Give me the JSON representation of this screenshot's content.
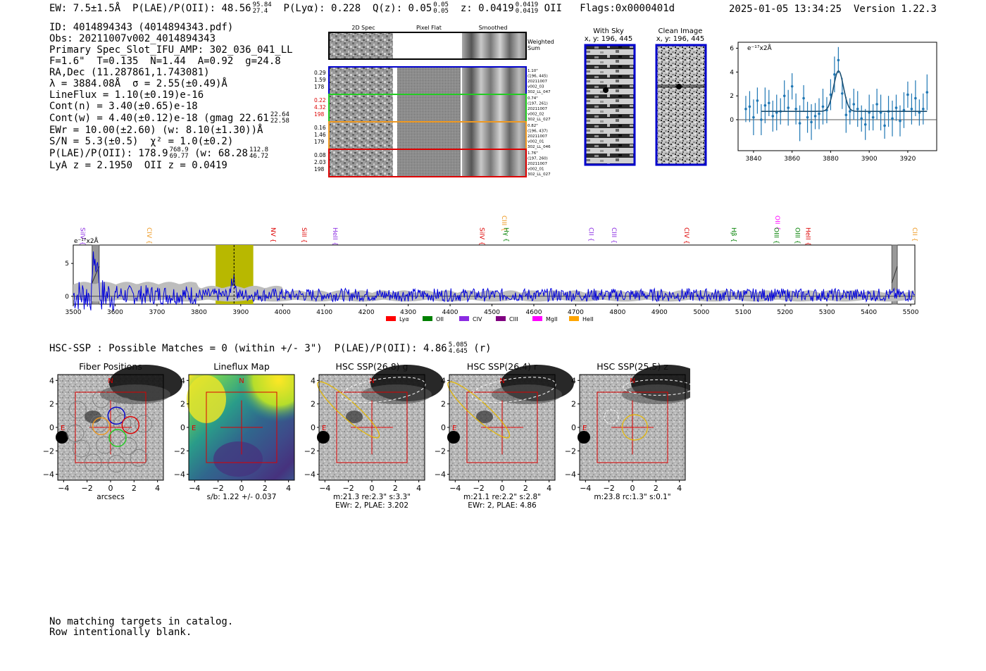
{
  "header": {
    "ew": "EW: 7.5±1.5Å",
    "plae_label": "P(LAE)/P(OII): 48.56",
    "plae_hi": "95.84",
    "plae_lo": "27.4",
    "plya": "P(Lyα): 0.228",
    "q_label": "Q(z): 0.05",
    "q_hi": "0.05",
    "q_lo": "0.05",
    "z_label": "z: 0.0419",
    "z_hi": "0.0419",
    "z_lo": "0.0419",
    "z_line": "OII",
    "flags": "Flags:0x0000401d",
    "datetime": "2025-01-05 13:34:25",
    "version": "Version 1.22.3"
  },
  "info": {
    "id": "ID: 4014894343 (4014894343.pdf)",
    "obs": "Obs: 20211007v002_4014894343",
    "primary": "Primary Spec_Slot_IFU_AMP: 302_036_041_LL",
    "params": "F=1.6\"  T=0.135  N=1.44  A=0.92  g=24.8",
    "radec": "RA,Dec (11.287861,1.743081)",
    "lambda": "λ = 3884.08Å  σ = 2.55(±0.49)Å",
    "lineflux": "LineFlux = 1.10(±0.19)e-16",
    "contn": "Cont(n) = 3.40(±0.65)e-18",
    "contw": "Cont(w) = 4.40(±0.12)e-18 (gmag 22.61",
    "contw_hi": "22.64",
    "contw_lo": "22.58",
    "ewr": "EWr = 10.00(±2.60) (w: 8.10(±1.30))Å",
    "sn": "S/N = 5.3(±0.5)  χ² = 1.0(±0.2)",
    "plae": "P(LAE)/P(OII): 178.9",
    "plae_hi": "768.9",
    "plae_lo": "69.77",
    "plae_w": "(w: 68.28",
    "plae_w_hi": "112.8",
    "plae_w_lo": "46.72",
    "lyaz": "LyA z = 2.1950  OII z = 0.0419"
  },
  "cutouts": {
    "col_2d": "2D Spec",
    "col_flat": "Pixel Flat",
    "col_smooth": "Smoothed",
    "weighted": "Weighted",
    "sum": "Sum",
    "rows": [
      {
        "color": "#0000cc",
        "left": [
          "0.29",
          "1.59",
          "178"
        ],
        "left_color": "#000000",
        "right": [
          "1.10\"",
          "(196, 445)",
          "20211007",
          "v002_03",
          "302_LL_047"
        ]
      },
      {
        "color": "#22cc22",
        "left": [
          "0.22",
          "4.32",
          "198"
        ],
        "left_color": "#dd0000",
        "right": [
          "0.74\"",
          "(197, 261)",
          "20211007",
          "v002_02",
          "302_LL_027"
        ]
      },
      {
        "color": "#ee9922",
        "left": [
          "0.16",
          "1.46",
          "179"
        ],
        "left_color": "#000000",
        "right": [
          "0.82\"",
          "(196, 437)",
          "20211007",
          "v002_01",
          "302_LL_046"
        ]
      },
      {
        "color": "#dd0000",
        "left": [
          "0.08",
          "2.03",
          "198"
        ],
        "left_color": "#000000",
        "right": [
          "1.76\"",
          "(197, 260)",
          "20211007",
          "v002_01",
          "302_LL_027"
        ]
      }
    ]
  },
  "sky": {
    "with_sky_title": "With Sky",
    "with_sky_coords": "x, y: 196, 445",
    "clean_title": "Clean Image",
    "clean_coords": "x, y: 196, 445"
  },
  "fit_plot": {
    "unit": "e⁻¹⁷x2Å",
    "yticks": [
      "6",
      "4",
      "2",
      "0"
    ],
    "xticks": [
      "3840",
      "3860",
      "3880",
      "3900",
      "3920"
    ]
  },
  "spectrum": {
    "unit": "e⁻¹⁷x2Å",
    "yticks": [
      "5",
      "0"
    ],
    "xticks": [
      "3500",
      "3600",
      "3700",
      "3800",
      "3900",
      "4000",
      "4100",
      "4200",
      "4300",
      "4400",
      "4500",
      "4600",
      "4700",
      "4800",
      "4900",
      "5000",
      "5100",
      "5200",
      "5300",
      "5400",
      "5500"
    ],
    "lines": [
      {
        "label": "SiIV",
        "wave": 3511,
        "color": "#8a2be2",
        "row": 0
      },
      {
        "label": "CIV",
        "wave": 3670,
        "color": "#ee9922",
        "row": 0
      },
      {
        "label": "NV",
        "wave": 3966,
        "color": "#dd0000",
        "row": 0
      },
      {
        "label": "SiII",
        "wave": 4040,
        "color": "#dd0000",
        "row": 0
      },
      {
        "label": "HeII",
        "wave": 4114,
        "color": "#8a2be2",
        "row": 0
      },
      {
        "label": "SiIV",
        "wave": 4465,
        "color": "#dd0000",
        "row": 0
      },
      {
        "label": "CIII",
        "wave": 4518,
        "color": "#ee9922",
        "row": 1
      },
      {
        "label": "Hγ",
        "wave": 4523,
        "color": "#008000",
        "row": 0
      },
      {
        "label": "CII",
        "wave": 4725,
        "color": "#8a2be2",
        "row": 0
      },
      {
        "label": "CIII",
        "wave": 4780,
        "color": "#8a2be2",
        "row": 0
      },
      {
        "label": "CIV",
        "wave": 4953,
        "color": "#dd0000",
        "row": 0
      },
      {
        "label": "Hβ",
        "wave": 5066,
        "color": "#008000",
        "row": 0
      },
      {
        "label": "OII",
        "wave": 5170,
        "color": "#ff00ff",
        "row": 2
      },
      {
        "label": "OIII",
        "wave": 5168,
        "color": "#008000",
        "row": 0
      },
      {
        "label": "OIII",
        "wave": 5218,
        "color": "#008000",
        "row": 0
      },
      {
        "label": "HeII",
        "wave": 5243,
        "color": "#dd0000",
        "row": 0
      },
      {
        "label": "CII",
        "wave": 5498,
        "color": "#ee9922",
        "row": 0
      }
    ],
    "legend": [
      {
        "label": "Lyα",
        "color": "#ff0000"
      },
      {
        "label": "OII",
        "color": "#008000"
      },
      {
        "label": "CIV",
        "color": "#8a2be2"
      },
      {
        "label": "CIII",
        "color": "#800080"
      },
      {
        "label": "MgII",
        "color": "#ff00ff"
      },
      {
        "label": "HeII",
        "color": "#ffa500"
      }
    ]
  },
  "hsc": {
    "summary": "HSC-SSP : Possible Matches = 0 (within +/- 3\")  P(LAE)/P(OII): 4.86",
    "summary_hi": "5.085",
    "summary_lo": "4.645",
    "summary_band": "(r)",
    "panels": [
      {
        "title": "Fiber Positions",
        "cap1": "arcsecs",
        "cap2": ""
      },
      {
        "title": "Lineflux Map",
        "cap1": "s/b: 1.22 +/- 0.037",
        "cap2": ""
      },
      {
        "title": "HSC SSP(26.8) g",
        "cap1": "m:21.3  re:2.3\"  s:3.3\"",
        "cap2": "EWr: 2, PLAE: 3.202"
      },
      {
        "title": "HSC SSP(26.4) r",
        "cap1": "m:21.1  re:2.2\"  s:2.8\"",
        "cap2": "EWr: 2, PLAE: 4.86"
      },
      {
        "title": "HSC SSP(25.5) z",
        "cap1": "m:23.8 rc:1.3\"  s:0.1\"",
        "cap2": ""
      }
    ],
    "yticks": [
      "4",
      "2",
      "0",
      "−2",
      "−4"
    ],
    "xticks": [
      "−4",
      "−2",
      "0",
      "2",
      "4"
    ],
    "north": "N",
    "east": "E"
  },
  "footer": {
    "line1": "No matching targets in catalog.",
    "line2": "Row intentionally blank."
  },
  "chart_data": [
    {
      "type": "scatter",
      "title": "",
      "xlabel": "",
      "ylabel": "e⁻¹⁷x2Å",
      "xlim": [
        3832,
        3935
      ],
      "ylim": [
        -2.6,
        6.5
      ],
      "x": [
        3836,
        3838,
        3840,
        3842,
        3844,
        3846,
        3848,
        3850,
        3852,
        3854,
        3856,
        3858,
        3860,
        3862,
        3864,
        3866,
        3868,
        3870,
        3872,
        3874,
        3876,
        3878,
        3880,
        3882,
        3884,
        3886,
        3888,
        3890,
        3892,
        3894,
        3896,
        3898,
        3900,
        3902,
        3904,
        3906,
        3908,
        3910,
        3912,
        3914,
        3916,
        3918,
        3920,
        3922,
        3924,
        3926,
        3928,
        3930
      ],
      "values": [
        0.9,
        1.1,
        0.2,
        1.6,
        0.0,
        1.2,
        1.4,
        0.3,
        0.6,
        0.7,
        2.0,
        1.0,
        2.8,
        0.9,
        -0.3,
        1.8,
        0.2,
        -0.2,
        0.3,
        0.5,
        1.1,
        0.8,
        2.1,
        3.8,
        5.0,
        2.2,
        0.4,
        0.7,
        1.3,
        0.9,
        0.1,
        -0.4,
        0.6,
        0.2,
        1.3,
        0.6,
        -0.5,
        0.7,
        0.1,
        1.0,
        -0.1,
        0.8,
        2.1,
        0.9,
        1.8,
        0.6,
        0.9,
        2.3
      ],
      "fit": {
        "continuum": 0.7,
        "center": 3884.08,
        "sigma": 2.55,
        "peak": 4.1
      }
    },
    {
      "type": "line",
      "title": "",
      "xlabel": "",
      "ylabel": "e⁻¹⁷x2Å",
      "xlim": [
        3500,
        5510
      ],
      "ylim": [
        -1.2,
        7.8
      ],
      "highlight_window": [
        3840,
        3930
      ],
      "line_center": 3884,
      "masked": [
        [
          3545,
          3562
        ],
        [
          5455,
          5468
        ]
      ]
    }
  ]
}
